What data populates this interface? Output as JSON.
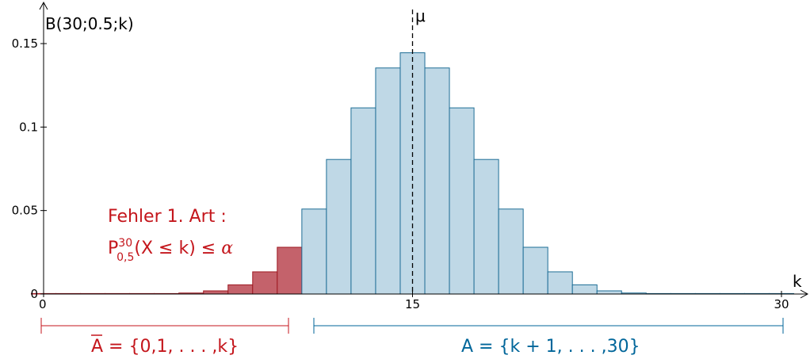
{
  "chart_data": {
    "type": "bar",
    "ylabel": "B(30;0.5;k)",
    "xlabel": "k",
    "xlim": [
      0,
      30
    ],
    "ylim": [
      0,
      0.15
    ],
    "x_ticks": [
      {
        "value": 0,
        "label": "0"
      },
      {
        "value": 15,
        "label": "15"
      },
      {
        "value": 30,
        "label": "30"
      }
    ],
    "y_ticks": [
      {
        "value": 0,
        "label": "0"
      },
      {
        "value": 0.05,
        "label": "0.05"
      },
      {
        "value": 0.1,
        "label": "0.1"
      },
      {
        "value": 0.15,
        "label": "0.15"
      }
    ],
    "k_critical": 10,
    "mean_marker": {
      "value": 15,
      "label": "μ"
    },
    "colors": {
      "rejection_fill": "#c4626b",
      "rejection_stroke": "#9e1a22",
      "acceptance_fill": "#bfd8e6",
      "acceptance_stroke": "#1f6e96",
      "red_text": "#c4161c",
      "blue_text": "#00669a"
    },
    "series": [
      {
        "x": [
          0,
          1,
          2,
          3,
          4,
          5,
          6,
          7,
          8,
          9,
          10,
          11,
          12,
          13,
          14,
          15,
          16,
          17,
          18,
          19,
          20,
          21,
          22,
          23,
          24,
          25,
          26,
          27,
          28,
          29,
          30
        ],
        "values": [
          0.0,
          0.0,
          0.0,
          0.0,
          0.0,
          0.0001,
          0.0006,
          0.0019,
          0.0055,
          0.0133,
          0.028,
          0.0509,
          0.0806,
          0.1115,
          0.1354,
          0.1445,
          0.1354,
          0.1115,
          0.0806,
          0.0509,
          0.028,
          0.0133,
          0.0055,
          0.0019,
          0.0006,
          0.0001,
          0.0,
          0.0,
          0.0,
          0.0,
          0.0
        ]
      }
    ],
    "annotation": {
      "line1": "Fehler 1.  Art :",
      "p_letter": "P",
      "p_sup": "30",
      "p_sub": "0,5",
      "p_rest": "(X ≤ k) ≤ ",
      "alpha": "α"
    },
    "regions": {
      "A_bar": {
        "letter": "A",
        "text": " = {0,1, . . . ,k}"
      },
      "A": {
        "letter": "A",
        "text": " = {k + 1, . . . ,30}"
      }
    }
  }
}
